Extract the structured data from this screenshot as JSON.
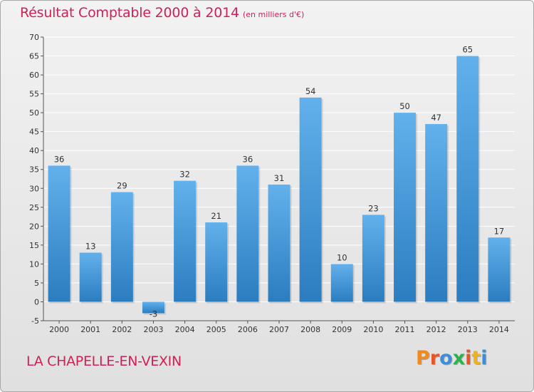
{
  "header": {
    "title": "Résultat Comptable 2000 à 2014",
    "subtitle": "(en milliers d'€)"
  },
  "footer": {
    "town": "LA CHAPELLE-EN-VEXIN",
    "logo_text": "Proxiti",
    "logo_colors": [
      "#f08a1c",
      "#e8552a",
      "#3a8fd8",
      "#2bb24c",
      "#e8552a",
      "#f0b21c",
      "#3a8fd8"
    ]
  },
  "colors": {
    "bar_top": "#62b1ec",
    "bar_bottom": "#2b7dc0",
    "grid": "#ffffff",
    "axis": "#555555"
  },
  "chart_data": {
    "type": "bar",
    "title": "Résultat Comptable 2000 à 2014",
    "subtitle": "(en milliers d'€)",
    "xlabel": "",
    "ylabel": "",
    "categories": [
      "2000",
      "2001",
      "2002",
      "2003",
      "2004",
      "2005",
      "2006",
      "2007",
      "2008",
      "2009",
      "2010",
      "2011",
      "2012",
      "2013",
      "2014"
    ],
    "values": [
      36,
      13,
      29,
      -3,
      32,
      21,
      36,
      31,
      54,
      10,
      23,
      50,
      47,
      65,
      17
    ],
    "ylim": [
      -5,
      70
    ],
    "yticks": [
      -5,
      0,
      5,
      10,
      15,
      20,
      25,
      30,
      35,
      40,
      45,
      50,
      55,
      60,
      65,
      70
    ],
    "grid": true,
    "legend": "none"
  }
}
